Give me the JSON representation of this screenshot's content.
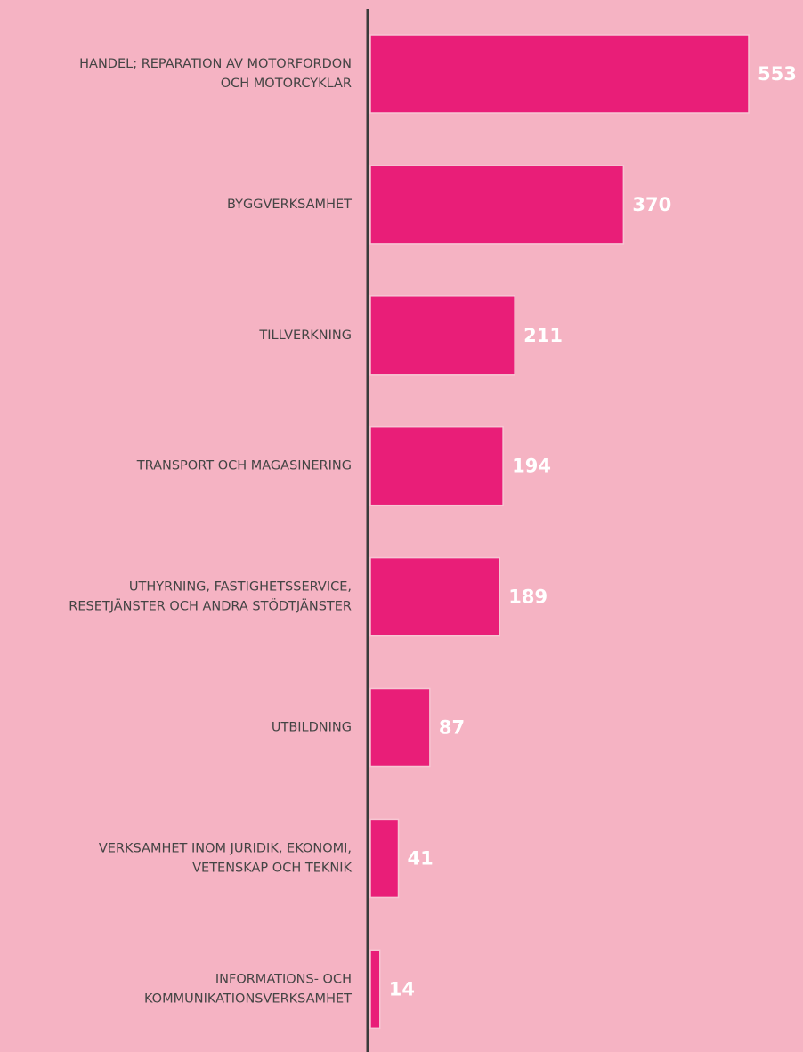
{
  "chart_data": {
    "type": "bar",
    "orientation": "horizontal",
    "categories": [
      [
        "HANDEL; REPARATION AV MOTORFORDON",
        "OCH MOTORCYKLAR"
      ],
      [
        "BYGGVERKSAMHET"
      ],
      [
        "TILLVERKNING"
      ],
      [
        "TRANSPORT OCH MAGASINERING"
      ],
      [
        "UTHYRNING, FASTIGHETSSERVICE,",
        "RESETJÄNSTER OCH ANDRA STÖDTJÄNSTER"
      ],
      [
        "UTBILDNING"
      ],
      [
        "VERKSAMHET INOM JURIDIK, EKONOMI,",
        "VETENSKAP OCH TEKNIK"
      ],
      [
        "INFORMATIONS- OCH",
        "KOMMUNIKATIONSVERKSAMHET"
      ]
    ],
    "values": [
      553,
      370,
      211,
      194,
      189,
      87,
      41,
      14
    ],
    "color": "#e91e78"
  }
}
